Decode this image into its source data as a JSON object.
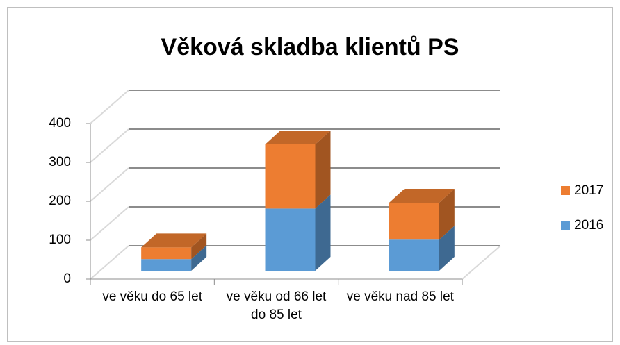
{
  "chart_data": {
    "type": "bar3d_stacked",
    "title": "Věková skladba klientů PS",
    "categories": [
      "ve věku do 65 let",
      "ve věku od 66 let do 85 let",
      "ve věku nad 85 let"
    ],
    "series": [
      {
        "name": "2016",
        "color": "#5b9bd5",
        "values": [
          30,
          160,
          80
        ]
      },
      {
        "name": "2017",
        "color": "#ed7d31",
        "values": [
          30,
          165,
          95
        ]
      }
    ],
    "ylim": [
      0,
      400
    ],
    "yticks": [
      0,
      100,
      200,
      300,
      400
    ],
    "grid": true,
    "legend": "right"
  }
}
